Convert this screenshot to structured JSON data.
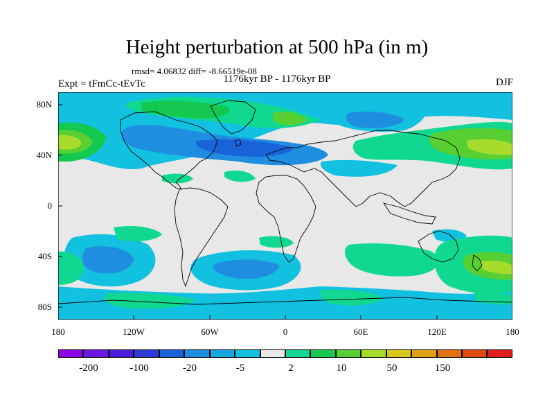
{
  "title": "Height perturbation at 500 hPa (in m)",
  "stats": "rmsd= 4.06832 diff= -8.66519e-08",
  "period": "1176kyr BP - 1176kyr BP",
  "experiment": "Expt = tFmCc-tEvTc",
  "season": "DJF",
  "lat_labels": [
    "80N",
    "40N",
    "0",
    "40S",
    "80S"
  ],
  "lon_labels": [
    "180",
    "120W",
    "60W",
    "0",
    "60E",
    "120E",
    "180"
  ],
  "colorbar": {
    "colors": [
      "#8c00e6",
      "#6a18e0",
      "#4a1bd8",
      "#2b3ad6",
      "#1a62d8",
      "#1f8ee0",
      "#18a6e0",
      "#12c0e0",
      "#e8e8e8",
      "#10d890",
      "#14c850",
      "#58d034",
      "#a8dc2c",
      "#d8c81c",
      "#e0a014",
      "#e07010",
      "#e04a0c",
      "#e01e1e"
    ],
    "labels": [
      "-200",
      "-100",
      "-20",
      "-5",
      "2",
      "10",
      "50",
      "150"
    ]
  }
}
